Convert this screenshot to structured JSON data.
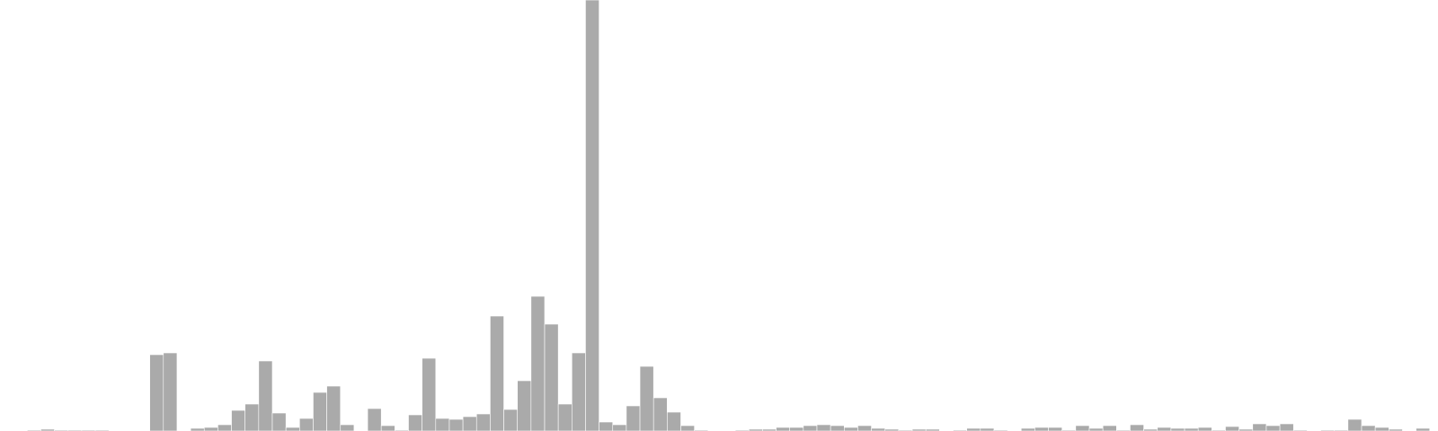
{
  "chart_data": {
    "type": "bar",
    "title": "",
    "xlabel": "",
    "ylabel": "",
    "grid": false,
    "legend": "none",
    "bar_color": "#aaaaaa",
    "bar_stroke": "#ffffff",
    "background": "#ffffff",
    "ylim": [
      0,
      480
    ],
    "values": [
      0,
      0,
      1,
      2,
      1,
      1,
      1,
      1,
      0,
      0,
      0,
      85,
      87,
      0,
      3,
      4,
      7,
      23,
      30,
      78,
      20,
      4,
      14,
      43,
      50,
      7,
      0,
      25,
      6,
      1,
      18,
      81,
      14,
      13,
      16,
      19,
      128,
      24,
      56,
      150,
      119,
      30,
      87,
      480,
      10,
      7,
      28,
      72,
      37,
      21,
      6,
      1,
      0,
      0,
      1,
      2,
      2,
      4,
      4,
      6,
      7,
      6,
      4,
      6,
      3,
      2,
      1,
      2,
      2,
      0,
      1,
      3,
      3,
      1,
      0,
      3,
      4,
      4,
      1,
      6,
      3,
      6,
      1,
      7,
      2,
      4,
      3,
      3,
      4,
      1,
      5,
      2,
      8,
      6,
      8,
      1,
      0,
      1,
      1,
      13,
      6,
      4,
      2,
      0,
      3
    ]
  }
}
